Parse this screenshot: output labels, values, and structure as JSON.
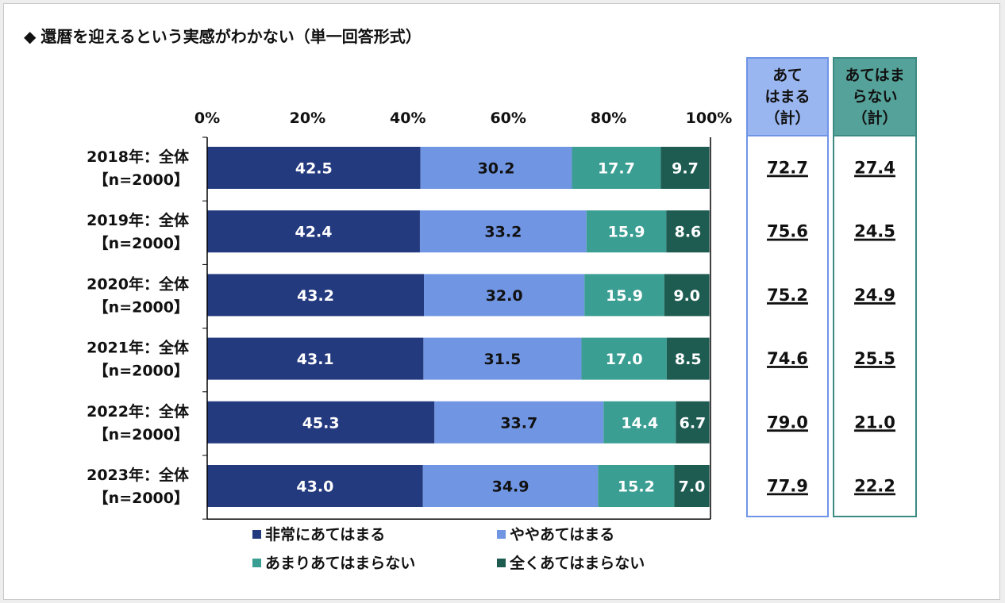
{
  "title_marker": "◆",
  "title": "還暦を迎えるという実感がわかない（単一回答形式）",
  "summary_headers": {
    "applies": [
      "あて",
      "はまる",
      "（計）"
    ],
    "not_applies": [
      "あてはま",
      "らない",
      "（計）"
    ]
  },
  "colors": {
    "very_applies": "#243a7e",
    "somewhat_applies": "#7095e3",
    "not_really": "#3b9e93",
    "not_at_all": "#1e5c52",
    "applies_header_bg": "#9ab6f0",
    "applies_border": "#6f94e6",
    "not_applies_header_bg": "#55a29a",
    "not_applies_border": "#3c8b83"
  },
  "chart_data": {
    "type": "bar",
    "orientation": "horizontal",
    "stacked": true,
    "title": "還暦を迎えるという実感がわかない（単一回答形式）",
    "categories": [
      [
        "2018年：全体",
        "【n=2000】"
      ],
      [
        "2019年：全体",
        "【n=2000】"
      ],
      [
        "2020年：全体",
        "【n=2000】"
      ],
      [
        "2021年：全体",
        "【n=2000】"
      ],
      [
        "2022年：全体",
        "【n=2000】"
      ],
      [
        "2023年：全体",
        "【n=2000】"
      ]
    ],
    "xlim": [
      0,
      100
    ],
    "x_ticks": [
      "0%",
      "20%",
      "40%",
      "60%",
      "80%",
      "100%"
    ],
    "legend_placement": "bottom",
    "series": [
      {
        "name": "非常にあてはまる",
        "color_key": "very_applies",
        "values": [
          42.5,
          42.4,
          43.2,
          43.1,
          45.3,
          43.0
        ]
      },
      {
        "name": "ややあてはまる",
        "color_key": "somewhat_applies",
        "values": [
          30.2,
          33.2,
          32.0,
          31.5,
          33.7,
          34.9
        ]
      },
      {
        "name": "あまりあてはまらない",
        "color_key": "not_really",
        "values": [
          17.7,
          15.9,
          15.9,
          17.0,
          14.4,
          15.2
        ]
      },
      {
        "name": "全くあてはまらない",
        "color_key": "not_at_all",
        "values": [
          9.7,
          8.6,
          9.0,
          8.5,
          6.7,
          7.0
        ]
      }
    ],
    "totals": {
      "applies": [
        "72.7",
        "75.6",
        "75.2",
        "74.6",
        "79.0",
        "77.9"
      ],
      "not_applies": [
        "27.4",
        "24.5",
        "24.9",
        "25.5",
        "21.0",
        "22.2"
      ]
    }
  }
}
